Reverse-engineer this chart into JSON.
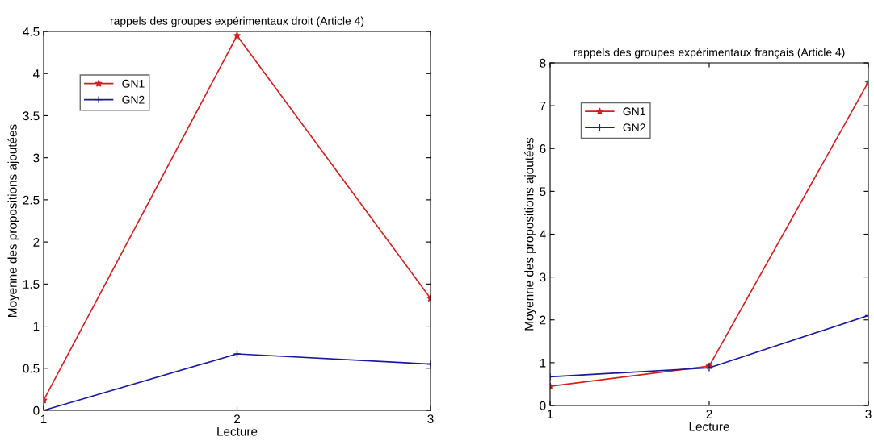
{
  "chart_data": [
    {
      "type": "line",
      "title": "rappels des groupes expérimentaux droit (Article 4)",
      "xlabel": "Lecture",
      "ylabel": "Moyenne des propositions ajoutées",
      "x": [
        1,
        2,
        3
      ],
      "xlim": [
        1,
        3
      ],
      "xticks": [
        1,
        2,
        3
      ],
      "ylim": [
        0,
        4.5
      ],
      "yticks": [
        0,
        0.5,
        1,
        1.5,
        2,
        2.5,
        3,
        3.5,
        4,
        4.5
      ],
      "grid": false,
      "legend": "top left",
      "series": [
        {
          "name": "GN1",
          "color": "#d02020",
          "marker": "star",
          "values": [
            0.12,
            4.45,
            1.33
          ]
        },
        {
          "name": "GN2",
          "color": "#1a1aa0",
          "marker": "cross",
          "values": [
            0.0,
            0.67,
            0.55
          ]
        }
      ]
    },
    {
      "type": "line",
      "title": "rappels des groupes expérimentaux français (Article 4)",
      "xlabel": "Lecture",
      "ylabel": "Moyenne des propositions ajoutées",
      "x": [
        1,
        2,
        3
      ],
      "xlim": [
        1,
        3
      ],
      "xticks": [
        1,
        2,
        3
      ],
      "ylim": [
        0,
        8
      ],
      "yticks": [
        0,
        1,
        2,
        3,
        4,
        5,
        6,
        7,
        8
      ],
      "grid": false,
      "legend": "top left",
      "series": [
        {
          "name": "GN1",
          "color": "#d02020",
          "marker": "star",
          "values": [
            0.45,
            0.92,
            7.55
          ]
        },
        {
          "name": "GN2",
          "color": "#1a1aa0",
          "marker": "cross",
          "values": [
            0.67,
            0.88,
            2.1
          ]
        }
      ]
    }
  ]
}
